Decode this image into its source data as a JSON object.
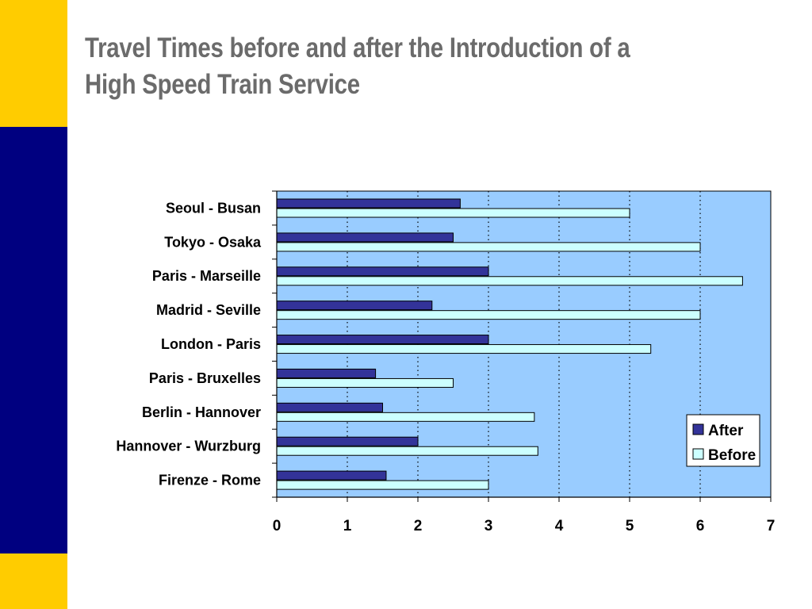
{
  "slide": {
    "title": "Travel Times before and after the Introduction of a High Speed Train Service"
  },
  "colors": {
    "brand_yellow": "#ffcc00",
    "brand_navy": "#000080",
    "title_gray": "#6b6b6b",
    "plot_background": "#99ccff",
    "after_bar": "#333399",
    "before_bar": "#ccffff"
  },
  "chart_data": {
    "type": "bar",
    "orientation": "horizontal",
    "categories": [
      "Seoul - Busan",
      "Tokyo - Osaka",
      "Paris - Marseille",
      "Madrid - Seville",
      "London - Paris",
      "Paris - Bruxelles",
      "Berlin - Hannover",
      "Hannover - Wurzburg",
      "Firenze - Rome"
    ],
    "series": [
      {
        "name": "After",
        "color": "#333399",
        "values": [
          2.6,
          2.5,
          3.0,
          2.2,
          3.0,
          1.4,
          1.5,
          2.0,
          1.55
        ]
      },
      {
        "name": "Before",
        "color": "#ccffff",
        "values": [
          5.0,
          6.0,
          6.6,
          6.0,
          5.3,
          2.5,
          3.65,
          3.7,
          3.0
        ]
      }
    ],
    "xlim": [
      0,
      7
    ],
    "x_ticks": [
      "0",
      "1",
      "2",
      "3",
      "4",
      "5",
      "6",
      "7"
    ],
    "grid": "vertical-dotted",
    "legend": "bottom-right",
    "xlabel": "",
    "ylabel": ""
  }
}
